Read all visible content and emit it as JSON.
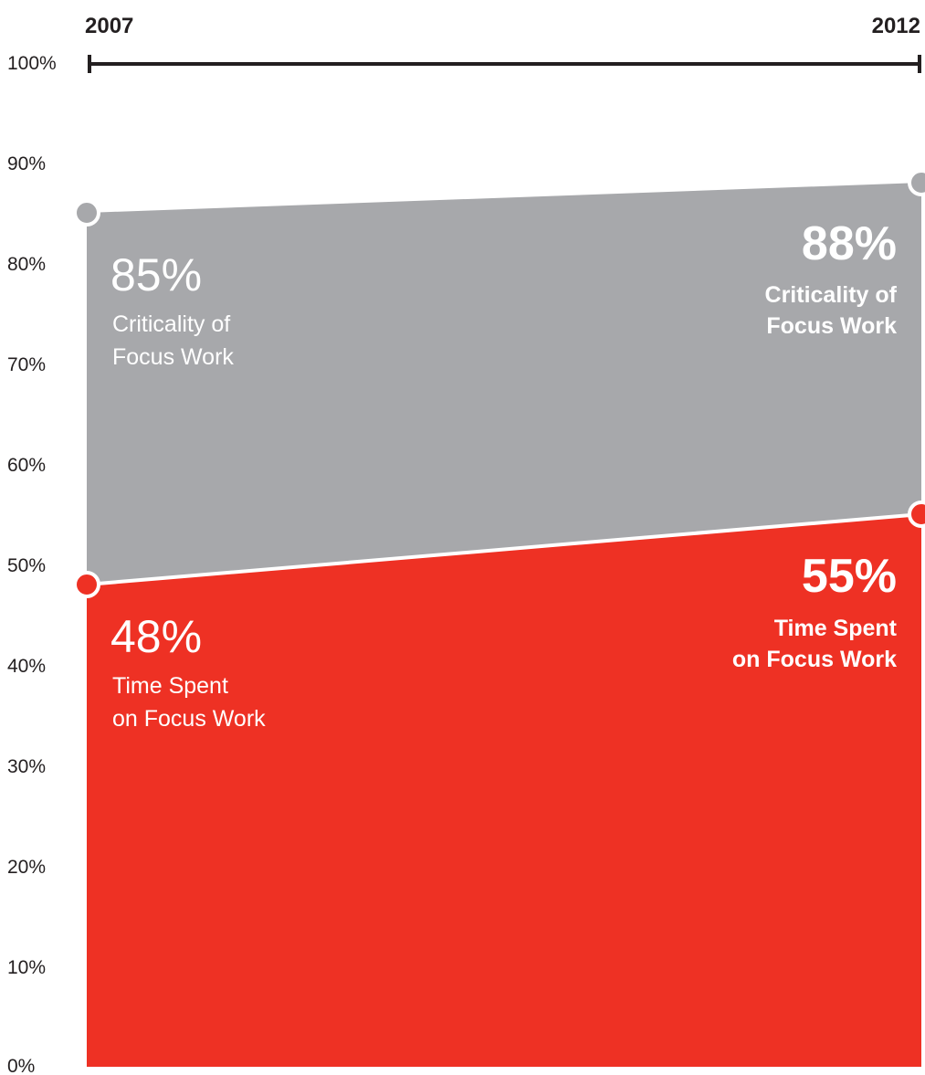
{
  "chart_data": {
    "type": "area",
    "x": [
      "2007",
      "2012"
    ],
    "series": [
      {
        "name": "Criticality of Focus Work",
        "values": [
          85,
          88
        ],
        "color": "#a7a8ab"
      },
      {
        "name": "Time Spent on Focus Work",
        "values": [
          48,
          55
        ],
        "color": "#ee3124"
      }
    ],
    "ylim": [
      0,
      100
    ],
    "yticks": [
      "0%",
      "10%",
      "20%",
      "30%",
      "40%",
      "50%",
      "60%",
      "70%",
      "80%",
      "90%",
      "100%"
    ],
    "grid": false,
    "annotations": {
      "crit_start_value": "85%",
      "crit_start_label": [
        "Criticality of",
        "Focus Work"
      ],
      "crit_end_value": "88%",
      "crit_end_label": [
        "Criticality of",
        "Focus Work"
      ],
      "time_start_value": "48%",
      "time_start_label": [
        "Time Spent",
        "on Focus Work"
      ],
      "time_end_value": "55%",
      "time_end_label": [
        "Time Spent",
        "on Focus Work"
      ]
    }
  }
}
